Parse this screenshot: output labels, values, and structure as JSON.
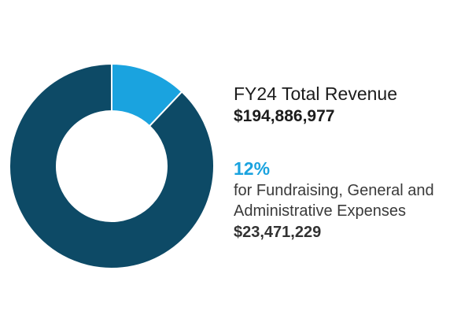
{
  "chart_data": {
    "type": "pie",
    "title": "FY24 Total Revenue",
    "total": 194886977,
    "total_label": "$194,886,977",
    "slices": [
      {
        "value": 23471229,
        "percent": 12,
        "color": "#1aa3df"
      },
      {
        "value": 171415748,
        "percent": 88,
        "color": "#0d4a66"
      }
    ]
  },
  "summary": {
    "title": "FY24 Total Revenue",
    "total_value": "$194,886,977",
    "percent": "12%",
    "desc_line1": "for Fundraising, General and",
    "desc_line2": "Administrative Expenses",
    "expense_value": "$23,471,229"
  },
  "colors": {
    "accent": "#1aa3df",
    "primary": "#0d4a66"
  }
}
